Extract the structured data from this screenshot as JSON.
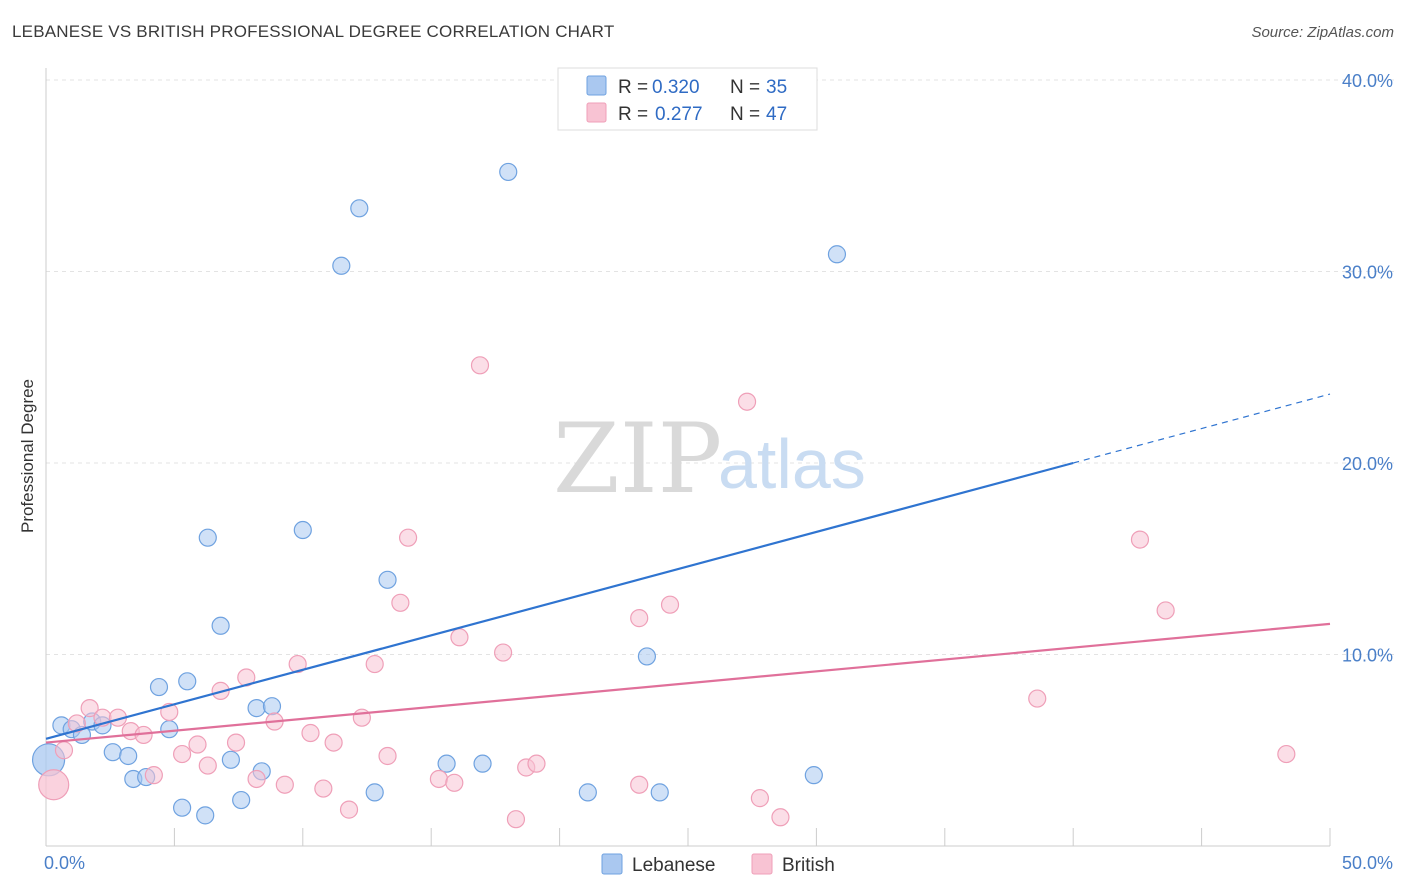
{
  "header": {
    "title": "LEBANESE VS BRITISH PROFESSIONAL DEGREE CORRELATION CHART",
    "source": "Source: ZipAtlas.com"
  },
  "watermark": {
    "zip": "ZIP",
    "atlas": "atlas"
  },
  "chart_data": {
    "type": "scatter",
    "title": "LEBANESE VS BRITISH PROFESSIONAL DEGREE CORRELATION CHART",
    "xlabel": "",
    "ylabel": "Professional Degree",
    "xlim": [
      0,
      50
    ],
    "ylim": [
      0,
      40
    ],
    "x_tick_labels": [
      "0.0%",
      "50.0%"
    ],
    "y_ticks": [
      10,
      20,
      30,
      40
    ],
    "y_tick_labels": [
      "10.0%",
      "20.0%",
      "30.0%",
      "40.0%"
    ],
    "grid": true,
    "legend_position": "top-center",
    "series": [
      {
        "name": "Lebanese",
        "color": "#6fa2e0",
        "fill": "#aac8f0",
        "line_color": "#2f74d0",
        "R": "0.320",
        "N": "35",
        "trend": {
          "x0": 0,
          "y0": 5.6,
          "x1": 40,
          "y1": 20.0,
          "dash_x1": 50,
          "dash_y1": 23.6
        },
        "points": [
          [
            0.1,
            4.5
          ],
          [
            0.6,
            6.3
          ],
          [
            1.0,
            6.1
          ],
          [
            1.4,
            5.8
          ],
          [
            1.8,
            6.5
          ],
          [
            2.2,
            6.3
          ],
          [
            2.6,
            4.9
          ],
          [
            3.2,
            4.7
          ],
          [
            3.4,
            3.5
          ],
          [
            3.9,
            3.6
          ],
          [
            4.4,
            8.3
          ],
          [
            4.8,
            6.1
          ],
          [
            5.3,
            2.0
          ],
          [
            5.5,
            8.6
          ],
          [
            6.2,
            1.6
          ],
          [
            6.3,
            16.1
          ],
          [
            6.8,
            11.5
          ],
          [
            7.2,
            4.5
          ],
          [
            7.6,
            2.4
          ],
          [
            8.2,
            7.2
          ],
          [
            8.4,
            3.9
          ],
          [
            8.8,
            7.3
          ],
          [
            10.0,
            16.5
          ],
          [
            11.5,
            30.3
          ],
          [
            12.2,
            33.3
          ],
          [
            12.8,
            2.8
          ],
          [
            13.3,
            13.9
          ],
          [
            15.6,
            4.3
          ],
          [
            17.0,
            4.3
          ],
          [
            18.0,
            35.2
          ],
          [
            21.1,
            2.8
          ],
          [
            23.4,
            9.9
          ],
          [
            23.9,
            2.8
          ],
          [
            29.9,
            3.7
          ],
          [
            30.8,
            30.9
          ]
        ]
      },
      {
        "name": "British",
        "color": "#ef9fb8",
        "fill": "#f8c3d3",
        "line_color": "#e0709a",
        "R": "0.277",
        "N": "47",
        "trend": {
          "x0": 0,
          "y0": 5.4,
          "x1": 50,
          "y1": 11.6
        },
        "points": [
          [
            0.3,
            3.2
          ],
          [
            0.7,
            5.0
          ],
          [
            1.2,
            6.4
          ],
          [
            1.7,
            7.2
          ],
          [
            2.2,
            6.7
          ],
          [
            2.8,
            6.7
          ],
          [
            3.3,
            6.0
          ],
          [
            3.8,
            5.8
          ],
          [
            4.2,
            3.7
          ],
          [
            4.8,
            7.0
          ],
          [
            5.3,
            4.8
          ],
          [
            5.9,
            5.3
          ],
          [
            6.3,
            4.2
          ],
          [
            6.8,
            8.1
          ],
          [
            7.4,
            5.4
          ],
          [
            7.8,
            8.8
          ],
          [
            8.2,
            3.5
          ],
          [
            8.9,
            6.5
          ],
          [
            9.3,
            3.2
          ],
          [
            9.8,
            9.5
          ],
          [
            10.3,
            5.9
          ],
          [
            10.8,
            3.0
          ],
          [
            11.2,
            5.4
          ],
          [
            11.8,
            1.9
          ],
          [
            12.3,
            6.7
          ],
          [
            12.8,
            9.5
          ],
          [
            13.3,
            4.7
          ],
          [
            13.8,
            12.7
          ],
          [
            14.1,
            16.1
          ],
          [
            15.3,
            3.5
          ],
          [
            15.9,
            3.3
          ],
          [
            16.1,
            10.9
          ],
          [
            16.9,
            25.1
          ],
          [
            17.8,
            10.1
          ],
          [
            18.3,
            1.4
          ],
          [
            18.7,
            4.1
          ],
          [
            19.1,
            4.3
          ],
          [
            23.1,
            11.9
          ],
          [
            23.1,
            3.2
          ],
          [
            24.3,
            12.6
          ],
          [
            27.3,
            23.2
          ],
          [
            27.8,
            2.5
          ],
          [
            28.6,
            1.5
          ],
          [
            38.6,
            7.7
          ],
          [
            42.6,
            16.0
          ],
          [
            43.6,
            12.3
          ],
          [
            48.3,
            4.8
          ]
        ]
      }
    ]
  }
}
